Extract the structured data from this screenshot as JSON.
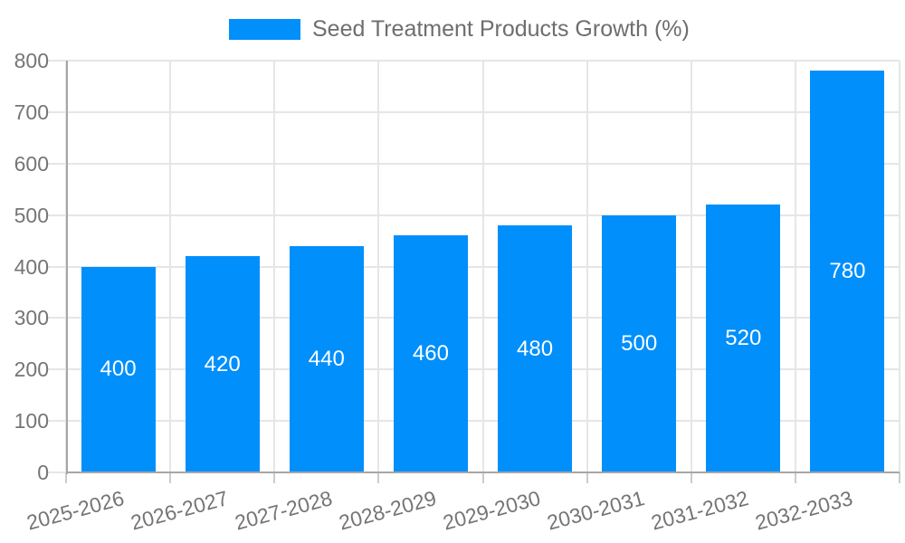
{
  "chart_data": {
    "type": "bar",
    "title": "Seed Treatment Products Growth (%)",
    "categories": [
      "2025-2026",
      "2026-2027",
      "2027-2028",
      "2028-2029",
      "2029-2030",
      "2030-2031",
      "2031-2032",
      "2032-2033"
    ],
    "series": [
      {
        "name": "Seed Treatment Products Growth (%)",
        "values": [
          400,
          420,
          440,
          460,
          480,
          500,
          520,
          780
        ]
      }
    ],
    "bar_value_labels": [
      400,
      420,
      440,
      460,
      480,
      500,
      520,
      780
    ],
    "xlabel": "",
    "ylabel": "",
    "ylim": [
      0,
      800
    ],
    "ytick_step": 100,
    "yticks": [
      0,
      100,
      200,
      300,
      400,
      500,
      600,
      700,
      800
    ],
    "grid": true,
    "legend_position": "top",
    "colors": {
      "bar": "#008FFB",
      "bar_label": "#FFFFFF",
      "axis_text": "#757575",
      "legend_text": "#6E6E6E",
      "grid_line": "#E6E6E6",
      "axis_line": "#A6A6A6",
      "tick": "#CCCCCC",
      "background": "#FFFFFF"
    }
  }
}
